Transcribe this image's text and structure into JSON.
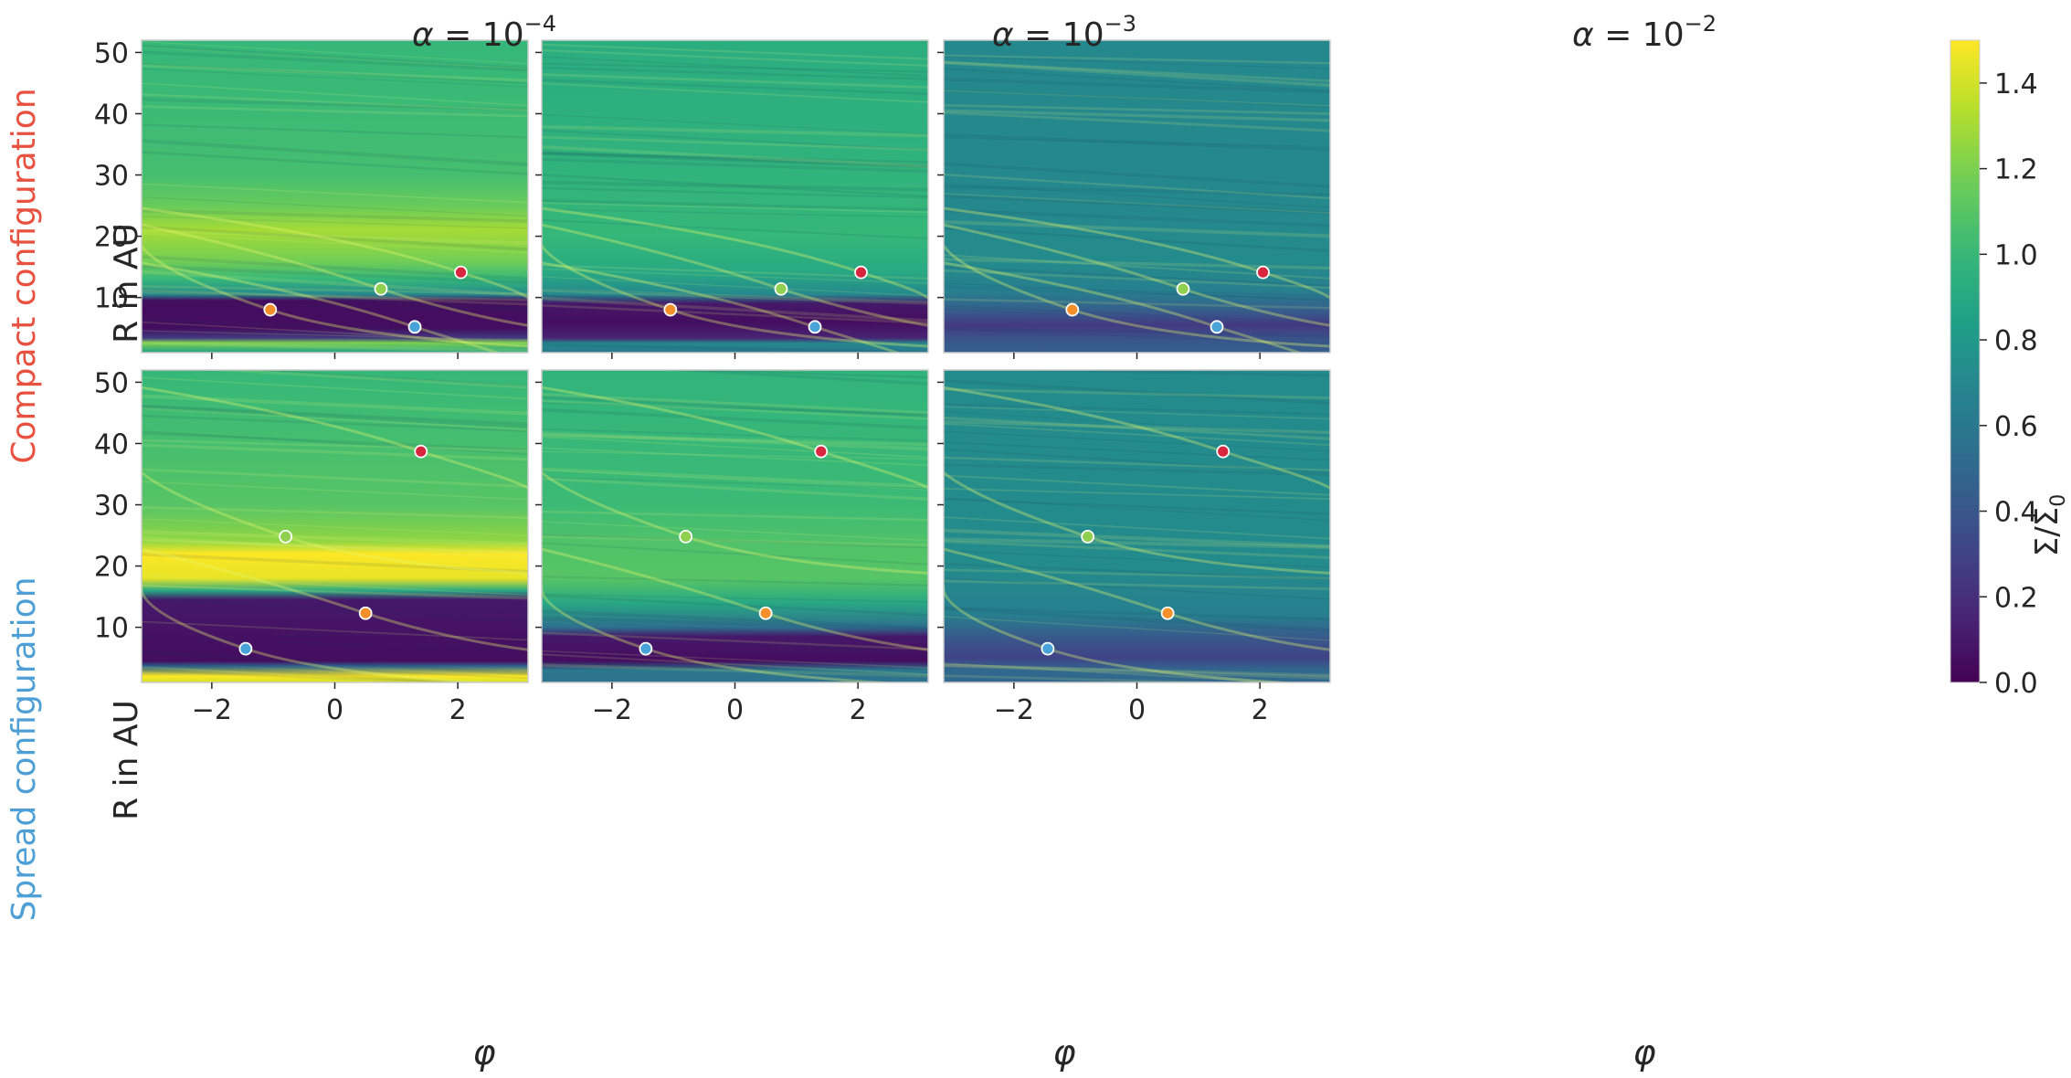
{
  "colors": {
    "colormap": "viridis",
    "compact_label": "#e8503f",
    "spread_label": "#4e9fd6",
    "planets": [
      "#4aa3d8",
      "#f58f2a",
      "#8fd14f",
      "#d7263d"
    ]
  },
  "chart_data": {
    "type": "heatmap",
    "rows": [
      "Compact configuration",
      "Spread configuration"
    ],
    "columns": [
      {
        "alpha_exponent": "−4",
        "alpha_value": 0.0001
      },
      {
        "alpha_exponent": "−3",
        "alpha_value": 0.001
      },
      {
        "alpha_exponent": "−2",
        "alpha_value": 0.01
      }
    ],
    "column_title_prefix": "α = 10",
    "xlabel": "φ",
    "ylabel": "R in AU",
    "xlim": [
      -3.14159,
      3.14159
    ],
    "ylim": [
      1,
      52
    ],
    "xticks": [
      -2,
      0,
      2
    ],
    "xtick_labels": [
      "−2",
      "0",
      "2"
    ],
    "yticks": [
      10,
      20,
      30,
      40,
      50
    ],
    "ytick_labels": [
      "10",
      "20",
      "30",
      "40",
      "50"
    ],
    "colorbar": {
      "label": "Σ/Σ",
      "label_subscript": "0",
      "range": [
        0.0,
        1.5
      ],
      "ticks": [
        0.0,
        0.2,
        0.4,
        0.6,
        0.8,
        1.0,
        1.2,
        1.4
      ],
      "tick_labels": [
        "0.0",
        "0.2",
        "0.4",
        "0.6",
        "0.8",
        "1.0",
        "1.2",
        "1.4"
      ]
    },
    "planets": [
      {
        "configuration": "Compact configuration",
        "points": [
          {
            "phi": 1.3,
            "r": 5.2
          },
          {
            "phi": -1.05,
            "r": 8.0
          },
          {
            "phi": 0.75,
            "r": 11.4
          },
          {
            "phi": 2.05,
            "r": 14.1
          }
        ]
      },
      {
        "configuration": "Spread configuration",
        "points": [
          {
            "phi": -1.45,
            "r": 6.5
          },
          {
            "phi": 0.5,
            "r": 12.3
          },
          {
            "phi": -0.8,
            "r": 24.8
          },
          {
            "phi": 1.4,
            "r": 38.7
          }
        ]
      }
    ],
    "panels": [
      {
        "row": 0,
        "col": 0,
        "background": 1.0,
        "levels": [
          [
            1,
            0.85
          ],
          [
            2.6,
            1.2
          ],
          [
            3.4,
            0.25
          ],
          [
            5,
            0.05
          ],
          [
            9.5,
            0.05
          ],
          [
            10.5,
            0.7
          ],
          [
            13,
            1.0
          ],
          [
            16,
            1.18
          ],
          [
            21,
            1.3
          ],
          [
            25,
            1.15
          ],
          [
            30,
            1.05
          ],
          [
            40,
            1.02
          ],
          [
            52,
            1.0
          ]
        ]
      },
      {
        "row": 0,
        "col": 1,
        "background": 0.95,
        "levels": [
          [
            1,
            0.6
          ],
          [
            2.5,
            0.7
          ],
          [
            3.4,
            0.15
          ],
          [
            6,
            0.05
          ],
          [
            9,
            0.1
          ],
          [
            10.5,
            0.7
          ],
          [
            14,
            0.9
          ],
          [
            20,
            1.0
          ],
          [
            30,
            0.97
          ],
          [
            40,
            0.95
          ],
          [
            52,
            0.93
          ]
        ]
      },
      {
        "row": 0,
        "col": 2,
        "background": 0.7,
        "levels": [
          [
            1,
            0.45
          ],
          [
            3,
            0.4
          ],
          [
            5.5,
            0.25
          ],
          [
            8,
            0.45
          ],
          [
            11,
            0.65
          ],
          [
            16,
            0.72
          ],
          [
            25,
            0.7
          ],
          [
            52,
            0.7
          ]
        ]
      },
      {
        "row": 1,
        "col": 0,
        "background": 1.0,
        "levels": [
          [
            1,
            1.4
          ],
          [
            2,
            1.5
          ],
          [
            3.6,
            0.5
          ],
          [
            4.5,
            0.05
          ],
          [
            14.5,
            0.1
          ],
          [
            16,
            0.9
          ],
          [
            18,
            1.45
          ],
          [
            22,
            1.5
          ],
          [
            24,
            1.25
          ],
          [
            30,
            1.1
          ],
          [
            40,
            1.05
          ],
          [
            52,
            1.0
          ]
        ]
      },
      {
        "row": 1,
        "col": 1,
        "background": 0.95,
        "levels": [
          [
            1,
            0.55
          ],
          [
            3,
            0.6
          ],
          [
            4.5,
            0.05
          ],
          [
            8.5,
            0.1
          ],
          [
            10,
            0.55
          ],
          [
            14,
            0.9
          ],
          [
            18,
            1.1
          ],
          [
            24,
            1.08
          ],
          [
            30,
            1.02
          ],
          [
            52,
            0.97
          ]
        ]
      },
      {
        "row": 1,
        "col": 2,
        "background": 0.72,
        "levels": [
          [
            1,
            0.5
          ],
          [
            3,
            0.5
          ],
          [
            5,
            0.3
          ],
          [
            8,
            0.4
          ],
          [
            12,
            0.65
          ],
          [
            20,
            0.72
          ],
          [
            52,
            0.72
          ]
        ]
      }
    ]
  }
}
